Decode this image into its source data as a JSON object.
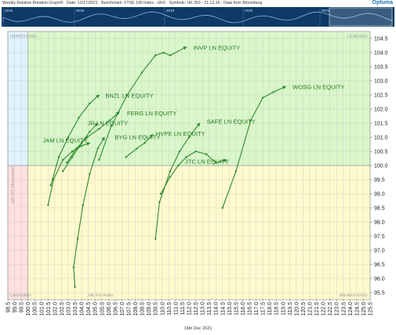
{
  "header": {
    "title": "Weekly Relative Rotation Graph®",
    "date": "Date: 12/17/2021",
    "benchmark": "Benchmark: FTSE 100 Index - UKX",
    "symbols": "Symbols: UK 350 - 21.12.16 - Data from Bloomberg",
    "logo": "Optuma"
  },
  "timeline": {
    "years": [
      "2016",
      "2018",
      "2019",
      "2020",
      "2021"
    ]
  },
  "footer": {
    "date": "16th Dec 2021"
  },
  "colors": {
    "improving": "#dff3ff",
    "leading": "#d9f7c9",
    "weakening": "#fffacd",
    "lagging": "#ffe0e0",
    "trail": "#2e8b2e"
  },
  "chart_data": {
    "type": "scatter",
    "title": "",
    "xlabel": "JdK RS-Ratio",
    "ylabel": "JdK RS-Momentum",
    "xlim": [
      98.5,
      125.5
    ],
    "ylim": [
      95.25,
      104.75
    ],
    "x_ticks": [
      "98.5",
      "99.0",
      "99.5",
      "100.0",
      "100.5",
      "101.0",
      "101.5",
      "102.0",
      "102.5",
      "103.0",
      "103.5",
      "104.0",
      "104.5",
      "105.0",
      "105.5",
      "106.0",
      "106.5",
      "107.0",
      "107.5",
      "108.0",
      "108.5",
      "109.0",
      "109.5",
      "110.0",
      "110.5",
      "111.0",
      "111.5",
      "112.0",
      "112.5",
      "113.0",
      "113.5",
      "114.0",
      "114.5",
      "115.0",
      "115.5",
      "116.0",
      "116.5",
      "117.0",
      "117.5",
      "118.0",
      "118.5",
      "119.0",
      "119.5",
      "120.0",
      "120.5",
      "121.0",
      "121.5",
      "122.0",
      "122.5",
      "123.0",
      "123.5",
      "124.0",
      "124.5",
      "125.0",
      "125.5"
    ],
    "y_ticks": [
      "95.5",
      "96.0",
      "96.5",
      "97.0",
      "97.5",
      "98.0",
      "98.5",
      "99.0",
      "99.5",
      "100.0",
      "100.5",
      "101.0",
      "101.5",
      "102.0",
      "102.5",
      "103.0",
      "103.5",
      "104.0",
      "104.5"
    ],
    "quadrants": [
      "IMPROVING",
      "LEADING",
      "WEAKENING",
      "LAGGING"
    ],
    "center": [
      100,
      100
    ],
    "series": [
      {
        "name": "INVP LN EQUITY",
        "points": [
          [
            105.3,
            100.2
          ],
          [
            106.2,
            101.4
          ],
          [
            107.4,
            102.5
          ],
          [
            108.5,
            103.3
          ],
          [
            109.5,
            103.9
          ],
          [
            110.1,
            104.0
          ],
          [
            110.6,
            103.9
          ],
          [
            111.8,
            104.2
          ]
        ]
      },
      {
        "name": "WOSG LN EQUITY",
        "points": [
          [
            114.5,
            98.5
          ],
          [
            115.5,
            99.8
          ],
          [
            116.6,
            101.6
          ],
          [
            117.5,
            102.4
          ],
          [
            118.3,
            102.6
          ],
          [
            119.2,
            102.8
          ]
        ]
      },
      {
        "name": "BNZL LN EQUITY",
        "points": [
          [
            101.7,
            99.3
          ],
          [
            102.3,
            100.3
          ],
          [
            103.0,
            101.0
          ],
          [
            103.8,
            101.7
          ],
          [
            104.6,
            102.2
          ],
          [
            105.3,
            102.5
          ]
        ]
      },
      {
        "name": "FERG LN EQUITY",
        "points": [
          [
            102.9,
            100.1
          ],
          [
            103.6,
            100.6
          ],
          [
            104.4,
            101.0
          ],
          [
            105.3,
            101.3
          ],
          [
            106.1,
            101.6
          ],
          [
            106.8,
            101.9
          ]
        ]
      },
      {
        "name": "JR LN EQUITY",
        "points": [
          [
            102.6,
            99.8
          ],
          [
            103.3,
            100.3
          ],
          [
            104.0,
            100.8
          ],
          [
            104.6,
            101.2
          ],
          [
            105.2,
            101.5
          ]
        ]
      },
      {
        "name": "JAM LN EQUITY",
        "points": [
          [
            101.5,
            98.6
          ],
          [
            101.9,
            99.5
          ],
          [
            102.6,
            100.2
          ],
          [
            103.3,
            100.5
          ],
          [
            104.0,
            100.7
          ],
          [
            104.6,
            100.8
          ]
        ]
      },
      {
        "name": "BYG LN EQUITY",
        "points": [
          [
            103.5,
            95.7
          ],
          [
            103.4,
            96.4
          ],
          [
            103.7,
            97.4
          ],
          [
            104.1,
            98.6
          ],
          [
            104.6,
            99.7
          ],
          [
            105.2,
            100.6
          ],
          [
            105.7,
            101.0
          ]
        ]
      },
      {
        "name": "HVPE LN EQUITY",
        "points": [
          [
            107.3,
            100.3
          ],
          [
            108.1,
            100.6
          ],
          [
            108.7,
            100.8
          ],
          [
            109.3,
            101.1
          ]
        ]
      },
      {
        "name": "SAFE LN EQUITY",
        "points": [
          [
            109.5,
            97.4
          ],
          [
            109.8,
            98.7
          ],
          [
            110.6,
            99.8
          ],
          [
            111.3,
            100.5
          ],
          [
            112.0,
            101.0
          ],
          [
            112.8,
            101.5
          ]
        ]
      },
      {
        "name": "JTC LN EQUITY",
        "points": [
          [
            109.9,
            99.0
          ],
          [
            110.6,
            99.6
          ],
          [
            111.2,
            100.0
          ],
          [
            111.8,
            100.3
          ],
          [
            112.5,
            100.5
          ],
          [
            113.3,
            100.4
          ],
          [
            114.0,
            100.1
          ],
          [
            114.8,
            100.2
          ]
        ]
      }
    ]
  }
}
